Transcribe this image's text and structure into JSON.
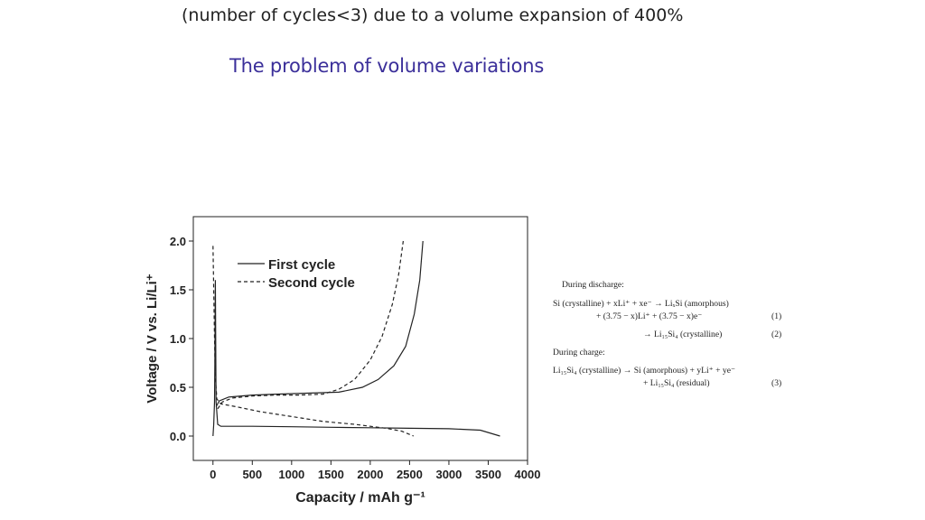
{
  "slide": {
    "top_line": "(number of cycles<3) due to a volume expansion of 400%",
    "subtitle": "The problem of volume variations",
    "accent_color": "#3b2f9a"
  },
  "equations": {
    "discharge_heading": "During discharge:",
    "eq1_line1": "Si (crystalline) + xLi⁺ + xe⁻ → LiₓSi (amorphous)",
    "eq1_line2": "+ (3.75 − x)Li⁺ + (3.75 − x)e⁻",
    "eq1_number": "(1)",
    "eq2_line": "→ Li₁₅Si₄ (crystalline)",
    "eq2_number": "(2)",
    "charge_heading": "During charge:",
    "eq3_line1": "Li₁₅Si₄ (crystalline) → Si (amorphous) + yLi⁺ + ye⁻",
    "eq3_line2": "+ Li₁₅Si₄ (residual)",
    "eq3_number": "(3)"
  },
  "chart_data": {
    "type": "line",
    "xlabel": "Capacity / mAh g⁻¹",
    "ylabel": "Voltage / V vs. Li/Li⁺",
    "xlim": [
      -250,
      4000
    ],
    "ylim": [
      -0.25,
      2.25
    ],
    "x_ticks": [
      0,
      500,
      1000,
      1500,
      2000,
      2500,
      3000,
      3500,
      4000
    ],
    "y_ticks": [
      0.0,
      0.5,
      1.0,
      1.5,
      2.0
    ],
    "y_tick_labels": [
      "0.0",
      "0.5",
      "1.0",
      "1.5",
      "2.0"
    ],
    "legend_placement": "top-left",
    "grid": false,
    "series": [
      {
        "name": "First cycle",
        "style": "solid",
        "points": [
          [
            0,
            0.0
          ],
          [
            10,
            0.12
          ],
          [
            20,
            0.35
          ],
          [
            25,
            0.8
          ],
          [
            30,
            1.6
          ],
          [
            40,
            0.35
          ],
          [
            60,
            0.12
          ],
          [
            100,
            0.1
          ],
          [
            500,
            0.1
          ],
          [
            1000,
            0.095
          ],
          [
            1500,
            0.09
          ],
          [
            2000,
            0.085
          ],
          [
            2500,
            0.08
          ],
          [
            3000,
            0.075
          ],
          [
            3400,
            0.06
          ],
          [
            3650,
            0.0
          ],
          null,
          [
            40,
            0.3
          ],
          [
            80,
            0.36
          ],
          [
            200,
            0.4
          ],
          [
            500,
            0.42
          ],
          [
            800,
            0.43
          ],
          [
            1200,
            0.44
          ],
          [
            1600,
            0.45
          ],
          [
            1900,
            0.5
          ],
          [
            2100,
            0.58
          ],
          [
            2300,
            0.72
          ],
          [
            2450,
            0.92
          ],
          [
            2560,
            1.25
          ],
          [
            2630,
            1.6
          ],
          [
            2670,
            2.0
          ]
        ]
      },
      {
        "name": "Second cycle",
        "style": "dashed",
        "points": [
          [
            0,
            1.95
          ],
          [
            10,
            1.5
          ],
          [
            20,
            1.0
          ],
          [
            30,
            0.6
          ],
          [
            50,
            0.38
          ],
          [
            100,
            0.33
          ],
          [
            300,
            0.3
          ],
          [
            600,
            0.25
          ],
          [
            1000,
            0.2
          ],
          [
            1400,
            0.15
          ],
          [
            1800,
            0.12
          ],
          [
            2200,
            0.08
          ],
          [
            2400,
            0.05
          ],
          [
            2550,
            0.0
          ],
          null,
          [
            60,
            0.28
          ],
          [
            120,
            0.35
          ],
          [
            250,
            0.39
          ],
          [
            500,
            0.41
          ],
          [
            800,
            0.42
          ],
          [
            1100,
            0.42
          ],
          [
            1400,
            0.43
          ],
          [
            1600,
            0.48
          ],
          [
            1800,
            0.58
          ],
          [
            2000,
            0.78
          ],
          [
            2150,
            1.02
          ],
          [
            2280,
            1.35
          ],
          [
            2360,
            1.65
          ],
          [
            2420,
            2.0
          ]
        ]
      }
    ]
  }
}
